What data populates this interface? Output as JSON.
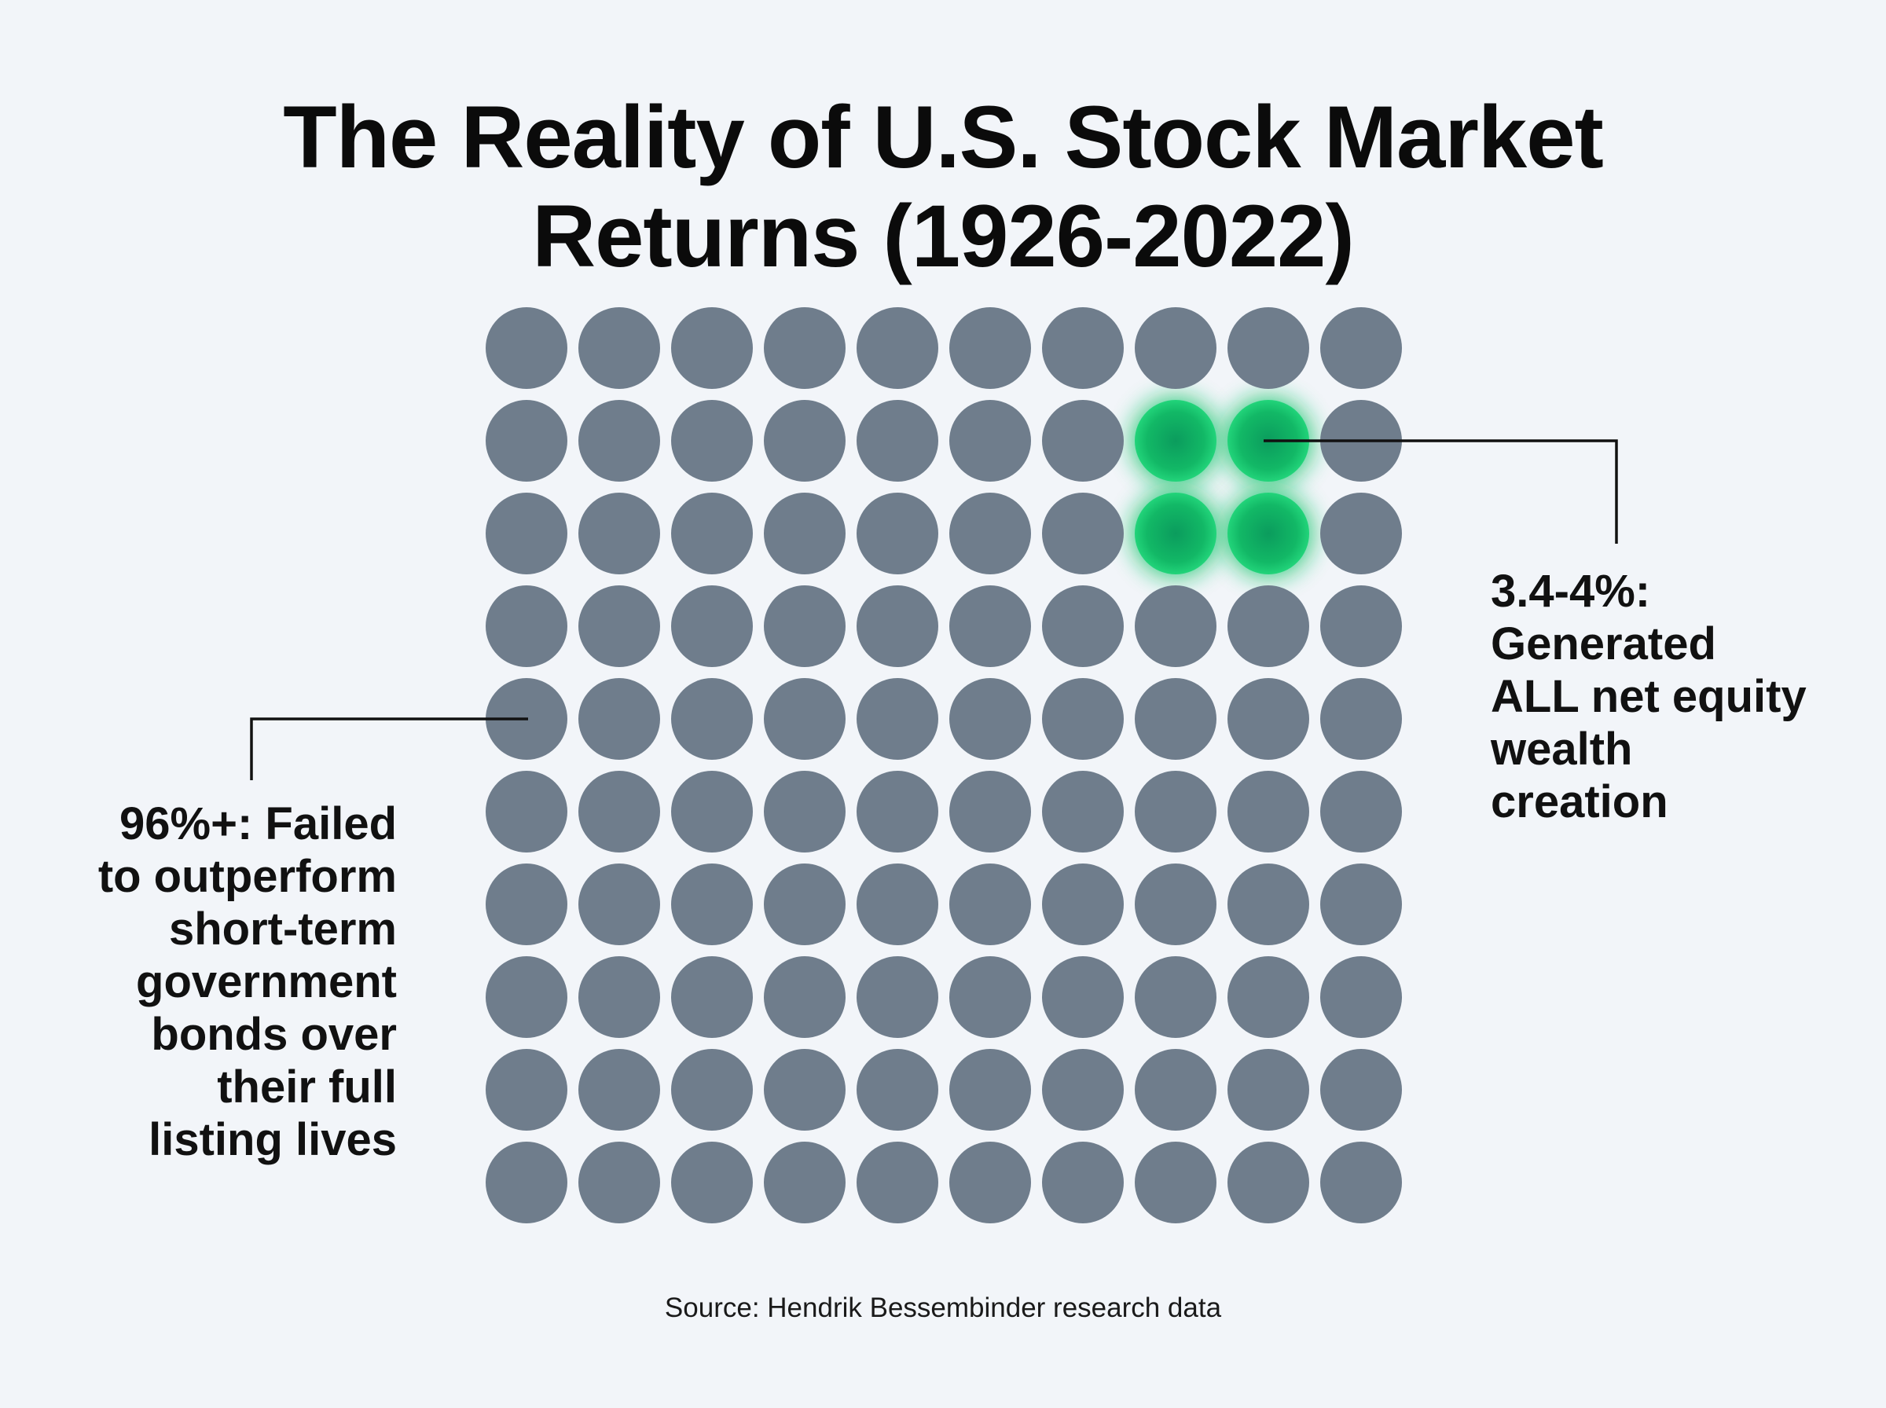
{
  "title": {
    "line1": "The Reality of U.S. Stock Market",
    "line2": "Returns (1926-2022)"
  },
  "chart_data": {
    "type": "waffle",
    "rows": 10,
    "cols": 10,
    "total": 100,
    "highlighted": [
      [
        1,
        7
      ],
      [
        1,
        8
      ],
      [
        2,
        7
      ],
      [
        2,
        8
      ]
    ],
    "colors": {
      "default": "#6f7d8c",
      "highlight": "#12c46a",
      "highlight_core": "#0ea964",
      "background": "#f2f5f9",
      "connector": "#111111"
    },
    "annotations": [
      {
        "id": "winners",
        "side": "right",
        "points_to": [
          1,
          8
        ],
        "lines": [
          "3.4-4%:",
          "Generated",
          "ALL net equity",
          "wealth",
          "creation"
        ]
      },
      {
        "id": "laggards",
        "side": "left",
        "points_to": [
          4,
          0
        ],
        "lines": [
          "96%+: Failed",
          "to outperform",
          "short-term",
          "government",
          "bonds over",
          "their full",
          "listing lives"
        ]
      }
    ],
    "source": "Source: Hendrik Bessembinder research data"
  }
}
